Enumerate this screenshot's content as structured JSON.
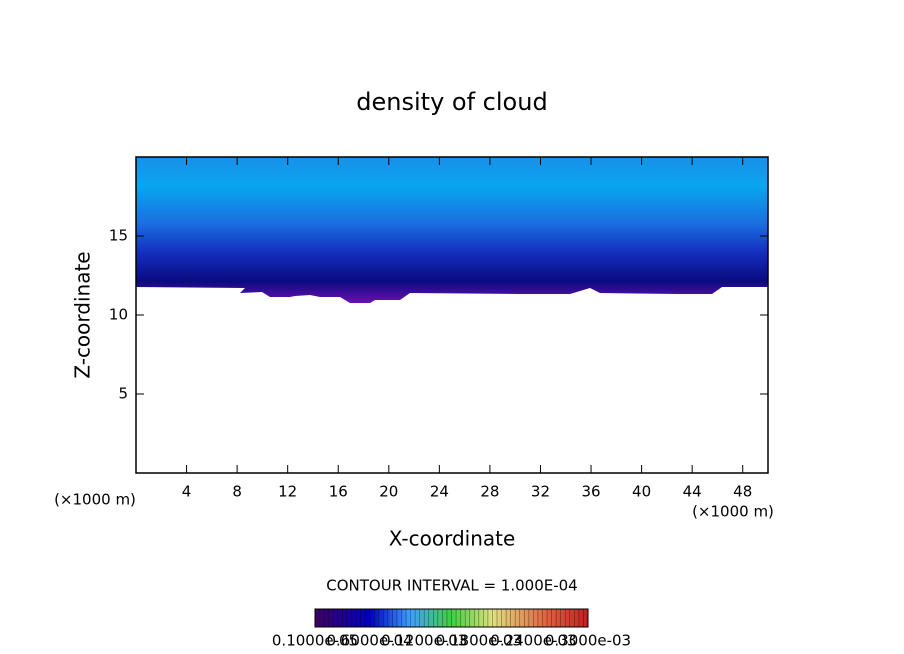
{
  "chart_data": {
    "type": "contour",
    "title": "density of cloud",
    "x_label": "X-coordinate",
    "y_label": "Z-coordinate",
    "x_unit_label": "(×1000 m)",
    "y_unit_label": "(×1000 m)",
    "xlim": [
      0,
      50
    ],
    "ylim": [
      0,
      20
    ],
    "xticks": [
      4,
      8,
      12,
      16,
      20,
      24,
      28,
      32,
      36,
      40,
      44,
      48
    ],
    "yticks": [
      5,
      10,
      15
    ],
    "contour_interval_label": "CONTOUR INTERVAL = 1.000E-04",
    "colorbar_labels": [
      "0.1000e-05",
      "0.6000e-04",
      "0.1200e-03",
      "0.1800e-03",
      "0.2400e-03",
      "0.3000e-03"
    ]
  }
}
